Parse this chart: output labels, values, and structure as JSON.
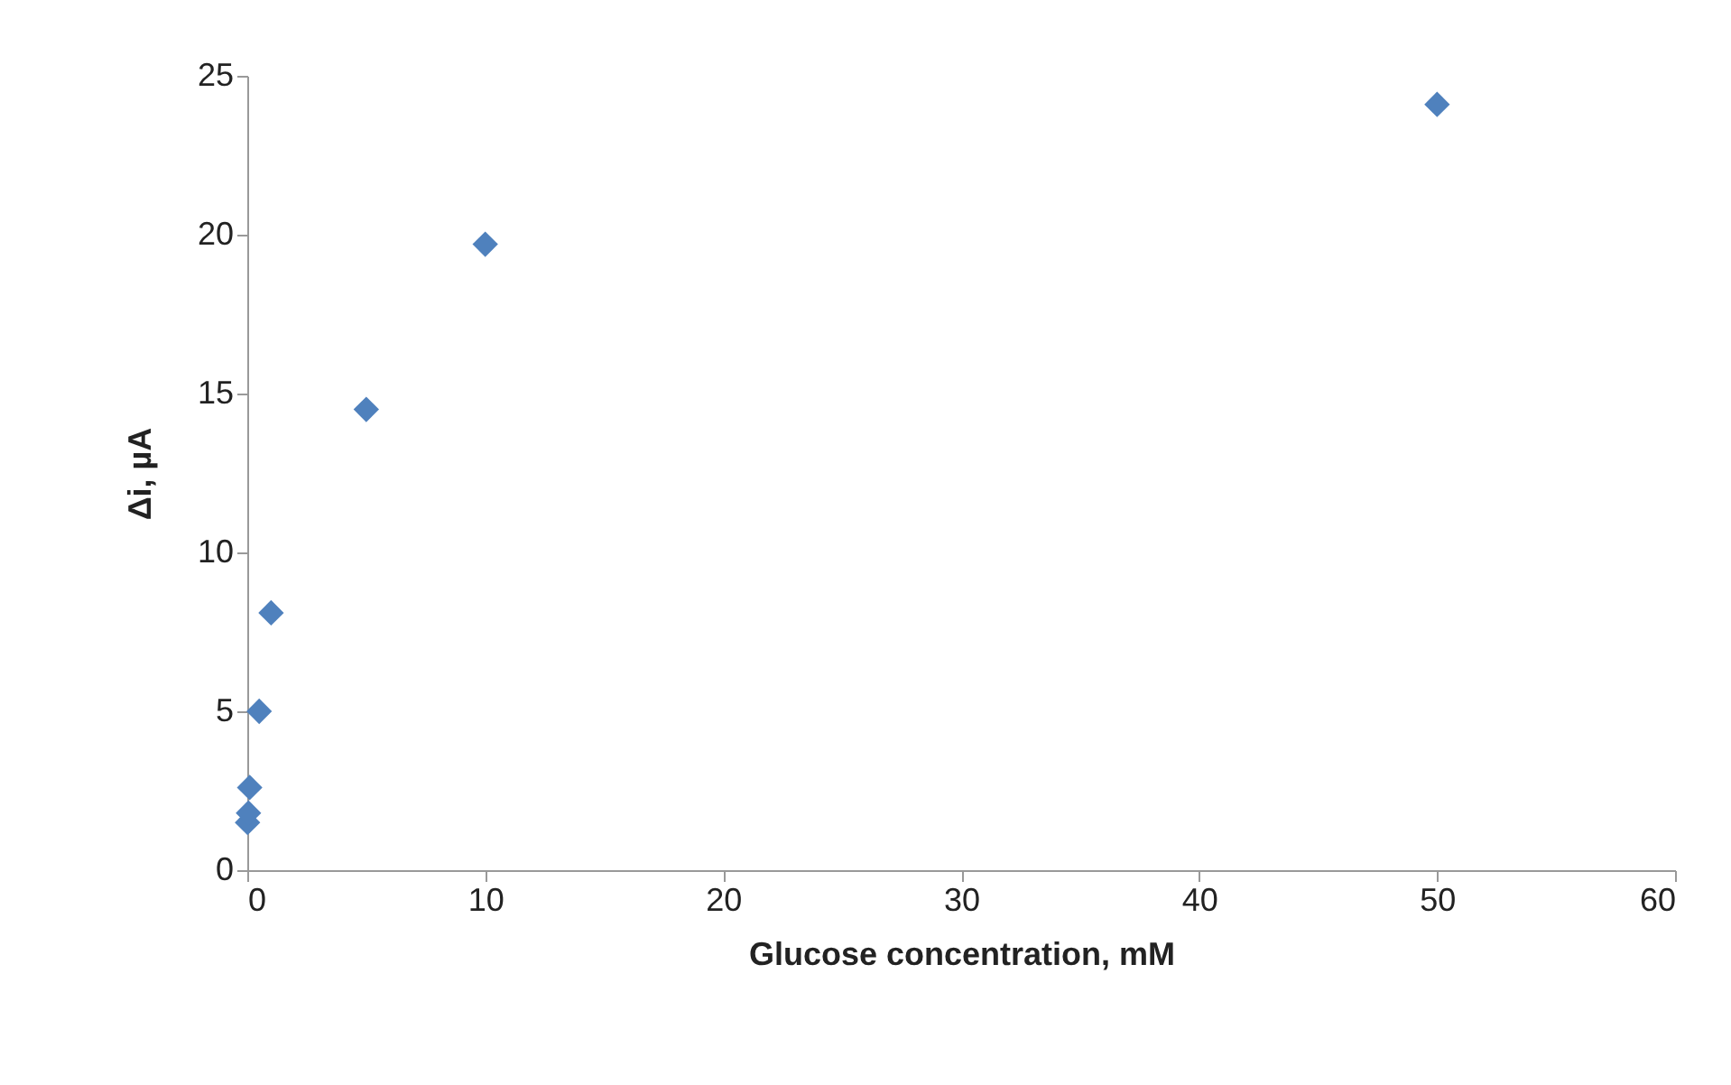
{
  "chart_data": {
    "type": "scatter",
    "xlabel": "Glucose concentration, mM",
    "ylabel": "Δi, µA",
    "x": [
      0.01,
      0.05,
      0.1,
      0.5,
      1,
      5,
      10,
      50
    ],
    "series": [
      {
        "color": "#4f81bd",
        "values": [
          1.5,
          1.8,
          2.6,
          5.0,
          8.1,
          14.5,
          19.7,
          24.1
        ]
      }
    ],
    "xlim": [
      0,
      60
    ],
    "xticks": [
      0,
      10,
      20,
      30,
      40,
      50,
      60
    ],
    "ylim": [
      0,
      25
    ],
    "yticks": [
      0,
      5,
      10,
      15,
      20,
      25
    ],
    "marker": "diamond",
    "grid": false
  }
}
